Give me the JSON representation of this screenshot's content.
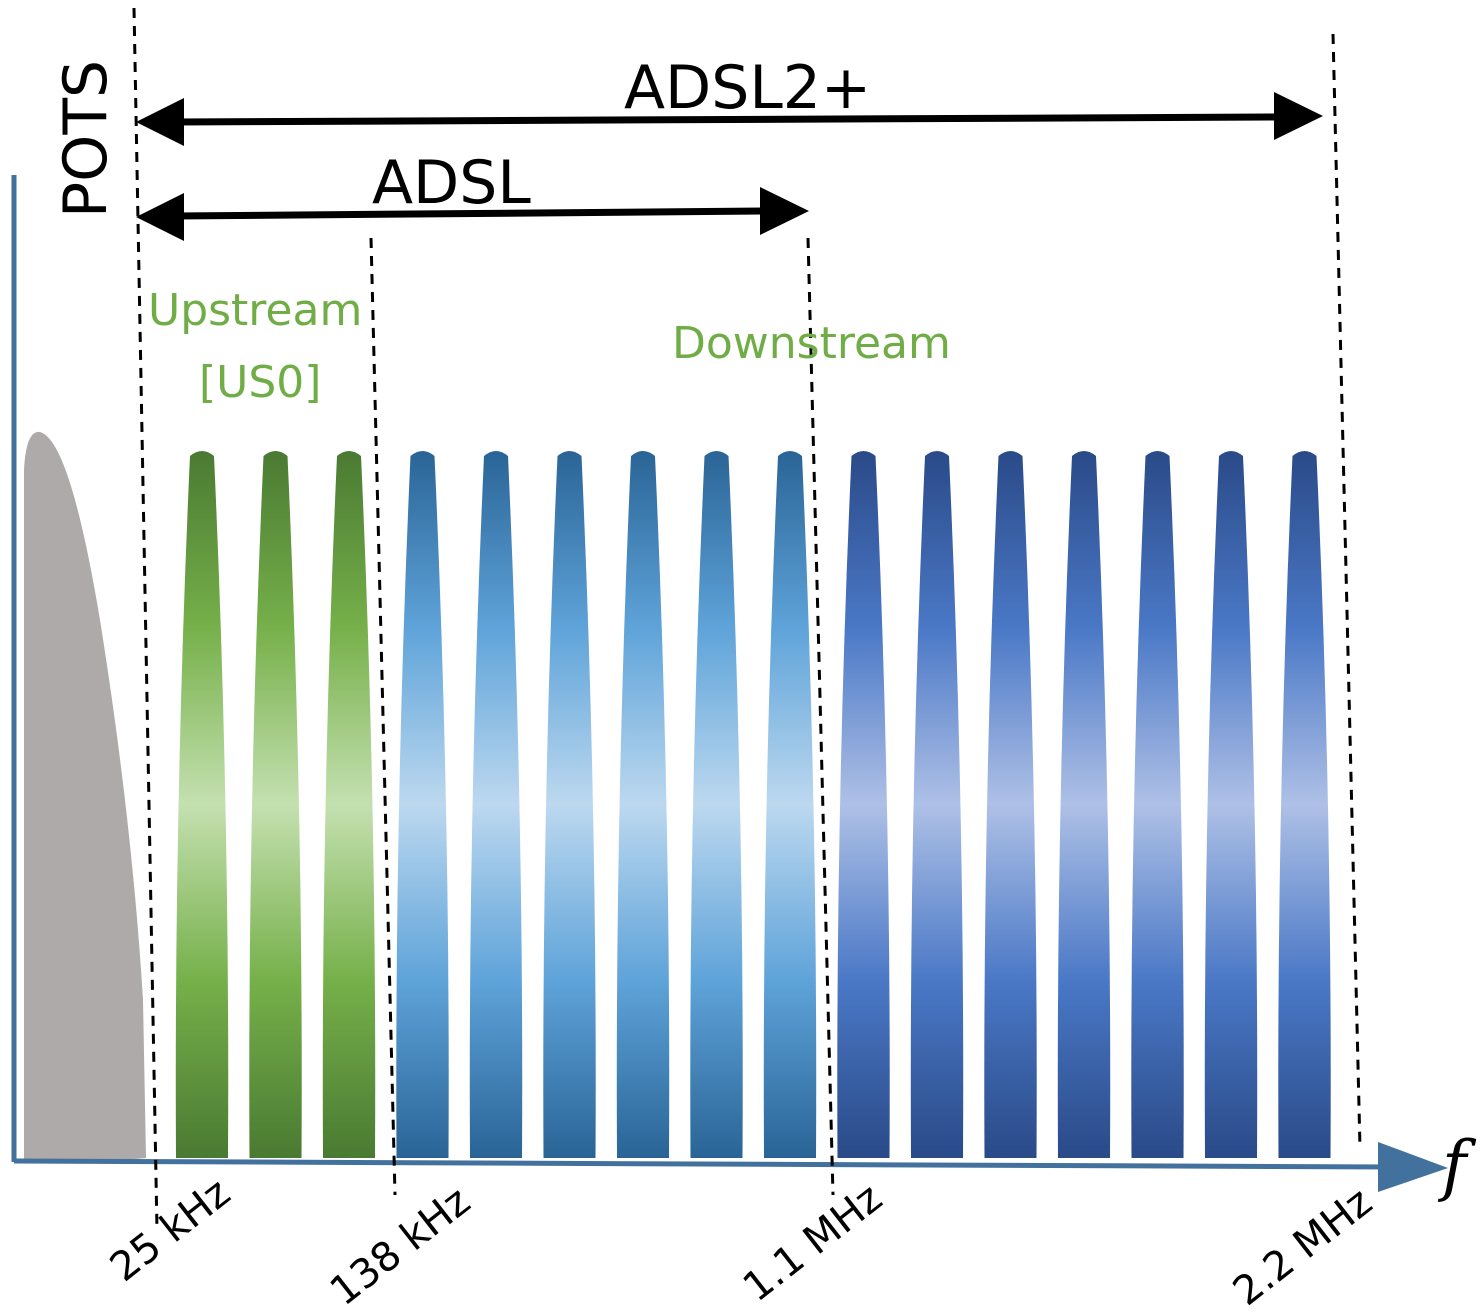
{
  "labels": {
    "pots": "POTS",
    "adsl2plus": "ADSL2+",
    "adsl": "ADSL",
    "upstream_line1": "Upstream",
    "upstream_line2": "[US0]",
    "downstream": "Downstream",
    "axis_f": "f"
  },
  "frequencies": [
    "25 kHz",
    "138 kHz",
    "1.1 MHz",
    "2.2 MHz"
  ],
  "colors": {
    "pots_fill": "#aeaaaa",
    "upstream_dark": "#4a7a32",
    "upstream_mid": "#76b04a",
    "upstream_light": "#c4e0b0",
    "downstream_adsl_dark": "#2a6496",
    "downstream_adsl_mid": "#5ea3d9",
    "downstream_adsl_light": "#bcd8ef",
    "downstream_adsl2_dark": "#2a4a88",
    "downstream_adsl2_mid": "#4a78c6",
    "downstream_adsl2_light": "#aec0e6",
    "axis": "#41719c",
    "arrow": "#000000",
    "text_green": "#70ad47"
  },
  "bands": {
    "upstream_count": 3,
    "downstream_adsl_count": 6,
    "downstream_adsl2plus_count": 7
  }
}
